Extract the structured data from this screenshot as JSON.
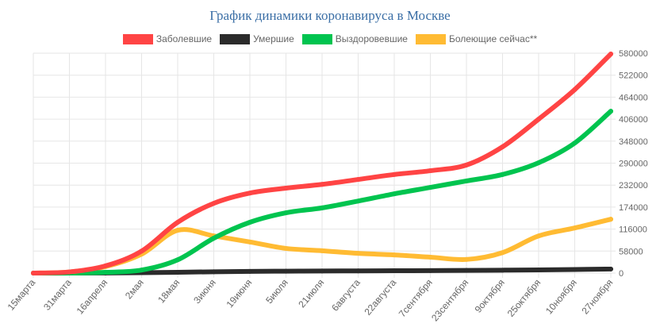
{
  "chart_data": {
    "type": "line",
    "title": "График динамики коронавируса в Москве",
    "categories": [
      "15марта",
      "31марта",
      "16апреля",
      "2мая",
      "18мая",
      "3июня",
      "19июня",
      "5июля",
      "21июля",
      "6августа",
      "22августа",
      "7сентября",
      "23сентября",
      "9октября",
      "25октября",
      "10ноября",
      "27ноября"
    ],
    "yticks": [
      0,
      58000,
      116000,
      174000,
      232000,
      290000,
      348000,
      406000,
      464000,
      522000,
      580000
    ],
    "ylim": [
      0,
      580000
    ],
    "grid": true,
    "legend_position": "top",
    "series": [
      {
        "name": "Заболевшие",
        "color": "#ff4444",
        "values": [
          0,
          3000,
          19000,
          58000,
          134000,
          184000,
          211000,
          224000,
          234000,
          247000,
          260000,
          270000,
          285000,
          333000,
          406000,
          484000,
          578000
        ]
      },
      {
        "name": "Умершие",
        "color": "#2b2b2b",
        "values": [
          0,
          0,
          300,
          1000,
          2000,
          3500,
          4500,
          5000,
          5500,
          5800,
          6200,
          6600,
          7000,
          7700,
          8500,
          9500,
          10600
        ]
      },
      {
        "name": "Выздоровевшие",
        "color": "#00c44f",
        "values": [
          0,
          0,
          2000,
          8000,
          35000,
          92000,
          134000,
          159000,
          172000,
          190000,
          209000,
          226000,
          243000,
          260000,
          291000,
          343000,
          427000
        ]
      },
      {
        "name": "Болеющие сейчас**",
        "color": "#ffbb33",
        "values": [
          0,
          3000,
          17000,
          50000,
          113000,
          98000,
          82000,
          65000,
          59000,
          52000,
          48000,
          42000,
          36000,
          54000,
          98000,
          119000,
          142000
        ]
      }
    ]
  }
}
